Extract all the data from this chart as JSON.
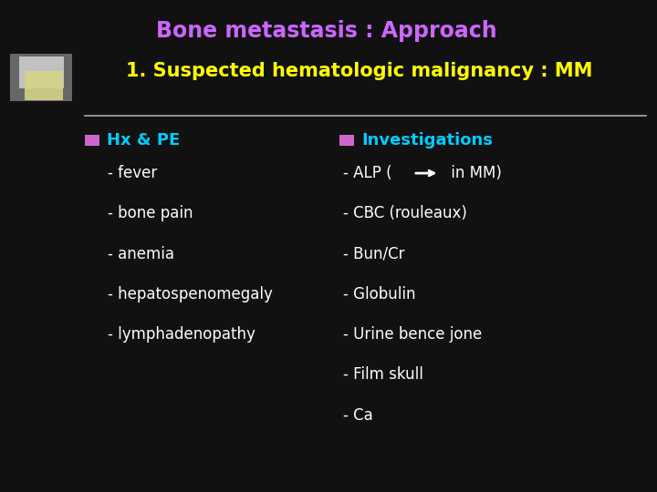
{
  "title": "Bone metastasis : Approach",
  "subtitle": "1. Suspected hematologic malignancy : MM",
  "title_color": "#cc66ff",
  "subtitle_color": "#ffff00",
  "bg_color": "#111111",
  "left_bullet_label": "Hx & PE",
  "bullet_color": "#00ccff",
  "bullet_square_color": "#cc66cc",
  "right_bullet_label": "Investigations",
  "left_items": [
    "- fever",
    "- bone pain",
    "- anemia",
    "- hepatospenomegaly",
    "- lymphadenopathy"
  ],
  "right_items_before_arrow": [
    "- ALP (",
    "- CBC (rouleaux)",
    "- Bun/Cr",
    "- Globulin",
    "- Urine bence jone",
    "- Film skull",
    "- Ca"
  ],
  "item_color": "#ffffff",
  "line_color": "#aaaaaa",
  "figsize": [
    7.2,
    5.4
  ],
  "dpi": 100
}
